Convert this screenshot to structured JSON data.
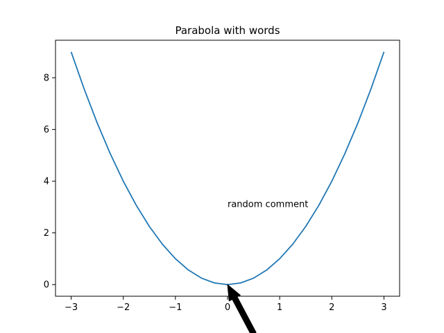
{
  "chart_data": {
    "type": "line",
    "title": "Parabola with words",
    "xlabel": "",
    "ylabel": "",
    "xlim": [
      -3.3,
      3.3
    ],
    "ylim": [
      -0.45,
      9.45
    ],
    "xticks": [
      -3,
      -2,
      -1,
      0,
      1,
      2,
      3
    ],
    "xtick_labels": [
      "−3",
      "−2",
      "−1",
      "0",
      "1",
      "2",
      "3"
    ],
    "yticks": [
      0,
      2,
      4,
      6,
      8
    ],
    "ytick_labels": [
      "0",
      "2",
      "4",
      "6",
      "8"
    ],
    "grid": false,
    "series": [
      {
        "color": "#1f77b4",
        "x": [
          -3.0,
          -2.75,
          -2.5,
          -2.25,
          -2.0,
          -1.75,
          -1.5,
          -1.25,
          -1.0,
          -0.75,
          -0.5,
          -0.25,
          0.0,
          0.25,
          0.5,
          0.75,
          1.0,
          1.25,
          1.5,
          1.75,
          2.0,
          2.25,
          2.5,
          2.75,
          3.0
        ],
        "y": [
          9.0,
          7.5625,
          6.25,
          5.0625,
          4.0,
          3.0625,
          2.25,
          1.5625,
          1.0,
          0.5625,
          0.25,
          0.0625,
          0.0,
          0.0625,
          0.25,
          0.5625,
          1.0,
          1.5625,
          2.25,
          3.0625,
          4.0,
          5.0625,
          6.25,
          7.5625,
          9.0
        ]
      }
    ],
    "annotations": [
      {
        "text": "random comment",
        "text_xy": [
          0.0,
          3.0
        ],
        "point_xy": [
          0.0,
          0.0
        ],
        "arrow_tail_xy": [
          0.5,
          -1.9
        ],
        "arrow_color": "#000000"
      }
    ]
  }
}
